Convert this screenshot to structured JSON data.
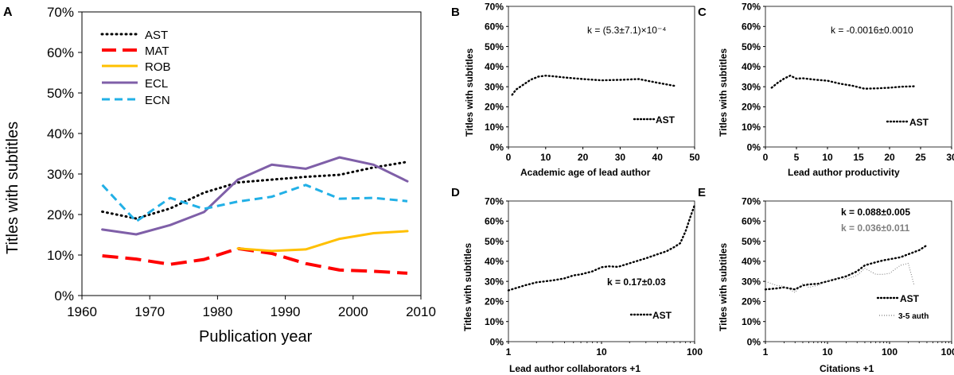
{
  "chart_data": [
    {
      "panel": "A",
      "type": "line",
      "xlabel": "Publication year",
      "ylabel": "Titles with subtitles",
      "xlim": [
        1960,
        2010
      ],
      "ylim": [
        0,
        70
      ],
      "xticks": [
        1960,
        1970,
        1980,
        1990,
        2000,
        2010
      ],
      "yticks": [
        "0%",
        "10%",
        "20%",
        "30%",
        "40%",
        "50%",
        "60%",
        "70%"
      ],
      "series": [
        {
          "name": "AST",
          "color": "#000000",
          "style": "dotted",
          "x": [
            1963,
            1968,
            1973,
            1978,
            1983,
            1988,
            1993,
            1998,
            2003,
            2008
          ],
          "y": [
            20.7,
            19.0,
            21.5,
            25.4,
            27.9,
            28.6,
            29.3,
            29.8,
            31.6,
            33.0
          ]
        },
        {
          "name": "MAT",
          "color": "#ff0000",
          "style": "longdash",
          "x": [
            1963,
            1968,
            1973,
            1978,
            1983,
            1988,
            1993,
            1998,
            2003,
            2008
          ],
          "y": [
            9.8,
            9.0,
            7.7,
            8.9,
            11.6,
            10.4,
            7.9,
            6.3,
            6.0,
            5.5
          ]
        },
        {
          "name": "ROB",
          "color": "#ffc000",
          "style": "solid",
          "x": [
            1983,
            1988,
            1993,
            1998,
            2003,
            2008
          ],
          "y": [
            11.6,
            11.0,
            11.4,
            14.0,
            15.4,
            15.9
          ]
        },
        {
          "name": "ECL",
          "color": "#7f5fa8",
          "style": "solid",
          "x": [
            1963,
            1968,
            1973,
            1978,
            1983,
            1988,
            1993,
            1998,
            2003,
            2008
          ],
          "y": [
            16.3,
            15.1,
            17.4,
            20.6,
            28.6,
            32.3,
            31.3,
            34.1,
            32.3,
            28.2
          ]
        },
        {
          "name": "ECN",
          "color": "#22b0e6",
          "style": "dashed",
          "x": [
            1963,
            1968,
            1973,
            1978,
            1983,
            1988,
            1993,
            1998,
            2003,
            2008
          ],
          "y": [
            27.3,
            18.3,
            24.1,
            21.4,
            23.2,
            24.4,
            27.3,
            23.9,
            24.1,
            23.3
          ]
        }
      ]
    },
    {
      "panel": "B",
      "type": "line",
      "xlabel": "Academic age of lead author",
      "ylabel": "Titles with subtitles",
      "xlim": [
        0,
        50
      ],
      "ylim": [
        0,
        70
      ],
      "xticks": [
        0,
        10,
        20,
        30,
        40,
        50
      ],
      "yticks": [
        "0%",
        "10%",
        "20%",
        "30%",
        "40%",
        "50%",
        "60%",
        "70%"
      ],
      "annotation": "k = (5.3±7.1)×10⁻⁴",
      "legend": "AST",
      "series": [
        {
          "name": "AST",
          "color": "#000000",
          "style": "dotted",
          "x": [
            1,
            2,
            4,
            6,
            8,
            10,
            12,
            15,
            20,
            25,
            30,
            35,
            40,
            45
          ],
          "y": [
            26,
            28.5,
            31,
            33.5,
            35,
            35.5,
            35.2,
            34.6,
            33.8,
            33.2,
            33.4,
            33.8,
            32,
            30.3
          ]
        }
      ]
    },
    {
      "panel": "C",
      "type": "line",
      "xlabel": "Lead author productivity",
      "ylabel": "Titles with subtitles",
      "xlim": [
        0,
        30
      ],
      "ylim": [
        0,
        70
      ],
      "xticks": [
        0,
        5,
        10,
        15,
        20,
        25,
        30
      ],
      "yticks": [
        "0%",
        "10%",
        "20%",
        "30%",
        "40%",
        "50%",
        "60%",
        "70%"
      ],
      "annotation": "k = -0.0016±0.0010",
      "legend": "AST",
      "series": [
        {
          "name": "AST",
          "color": "#000000",
          "style": "dotted",
          "x": [
            1,
            2,
            3,
            4,
            5,
            6,
            8,
            10,
            12,
            14,
            16,
            18,
            20,
            22,
            24
          ],
          "y": [
            29.5,
            32,
            34,
            35.5,
            34,
            34.2,
            33.5,
            33,
            31.5,
            30.5,
            29,
            29.2,
            29.5,
            30,
            30.2
          ]
        }
      ]
    },
    {
      "panel": "D",
      "type": "line",
      "xlabel": "Lead author collaborators +1",
      "ylabel": "Titles with subtitles",
      "xscale": "log",
      "xlim": [
        1,
        100
      ],
      "ylim": [
        0,
        70
      ],
      "xticks": [
        1,
        10,
        100
      ],
      "yticks": [
        "0%",
        "10%",
        "20%",
        "30%",
        "40%",
        "50%",
        "60%",
        "70%"
      ],
      "annotation": "k = 0.17±0.03",
      "legend": "AST",
      "series": [
        {
          "name": "AST",
          "color": "#000000",
          "style": "dotted",
          "x": [
            1,
            1.5,
            2,
            3,
            4,
            5,
            6,
            8,
            10,
            12,
            15,
            20,
            30,
            40,
            50,
            60,
            70,
            80,
            90,
            100
          ],
          "y": [
            25.5,
            28,
            29.5,
            30.5,
            31.5,
            33,
            33.5,
            35,
            37,
            37.5,
            37.2,
            39,
            41.5,
            43.5,
            45,
            47,
            49,
            55,
            62,
            68
          ]
        }
      ]
    },
    {
      "panel": "E",
      "type": "line",
      "xlabel": "Citations +1",
      "ylabel": "Titles with subtitles",
      "xscale": "log",
      "xlim": [
        1,
        1000
      ],
      "ylim": [
        0,
        70
      ],
      "xticks": [
        1,
        10,
        100,
        1000
      ],
      "yticks": [
        "0%",
        "10%",
        "20%",
        "30%",
        "40%",
        "50%",
        "60%",
        "70%"
      ],
      "annotations": [
        "k = 0.088±0.005",
        "k = 0.036±0.011"
      ],
      "legend": [
        "AST",
        "3-5 auth"
      ],
      "series": [
        {
          "name": "AST",
          "color": "#000000",
          "style": "dotted",
          "x": [
            1,
            1.5,
            2,
            3,
            4,
            5,
            7,
            10,
            15,
            20,
            30,
            40,
            60,
            80,
            100,
            150,
            200,
            300,
            400
          ],
          "y": [
            26,
            26.5,
            27,
            26,
            28,
            28.5,
            28.8,
            30,
            31.5,
            32.5,
            35,
            38,
            39.5,
            40.5,
            41,
            42,
            43.5,
            45.5,
            48
          ]
        },
        {
          "name": "3-5 auth",
          "color": "#7f7f7f",
          "style": "finedotted",
          "x": [
            1,
            1.5,
            2,
            3,
            4,
            5,
            7,
            10,
            15,
            20,
            30,
            40,
            60,
            80,
            100,
            150,
            200,
            250
          ],
          "y": [
            30,
            28,
            27.5,
            24.5,
            29,
            27,
            28,
            30,
            32,
            31,
            33,
            36.5,
            33.5,
            33.5,
            34,
            38,
            39,
            28
          ]
        }
      ]
    }
  ]
}
